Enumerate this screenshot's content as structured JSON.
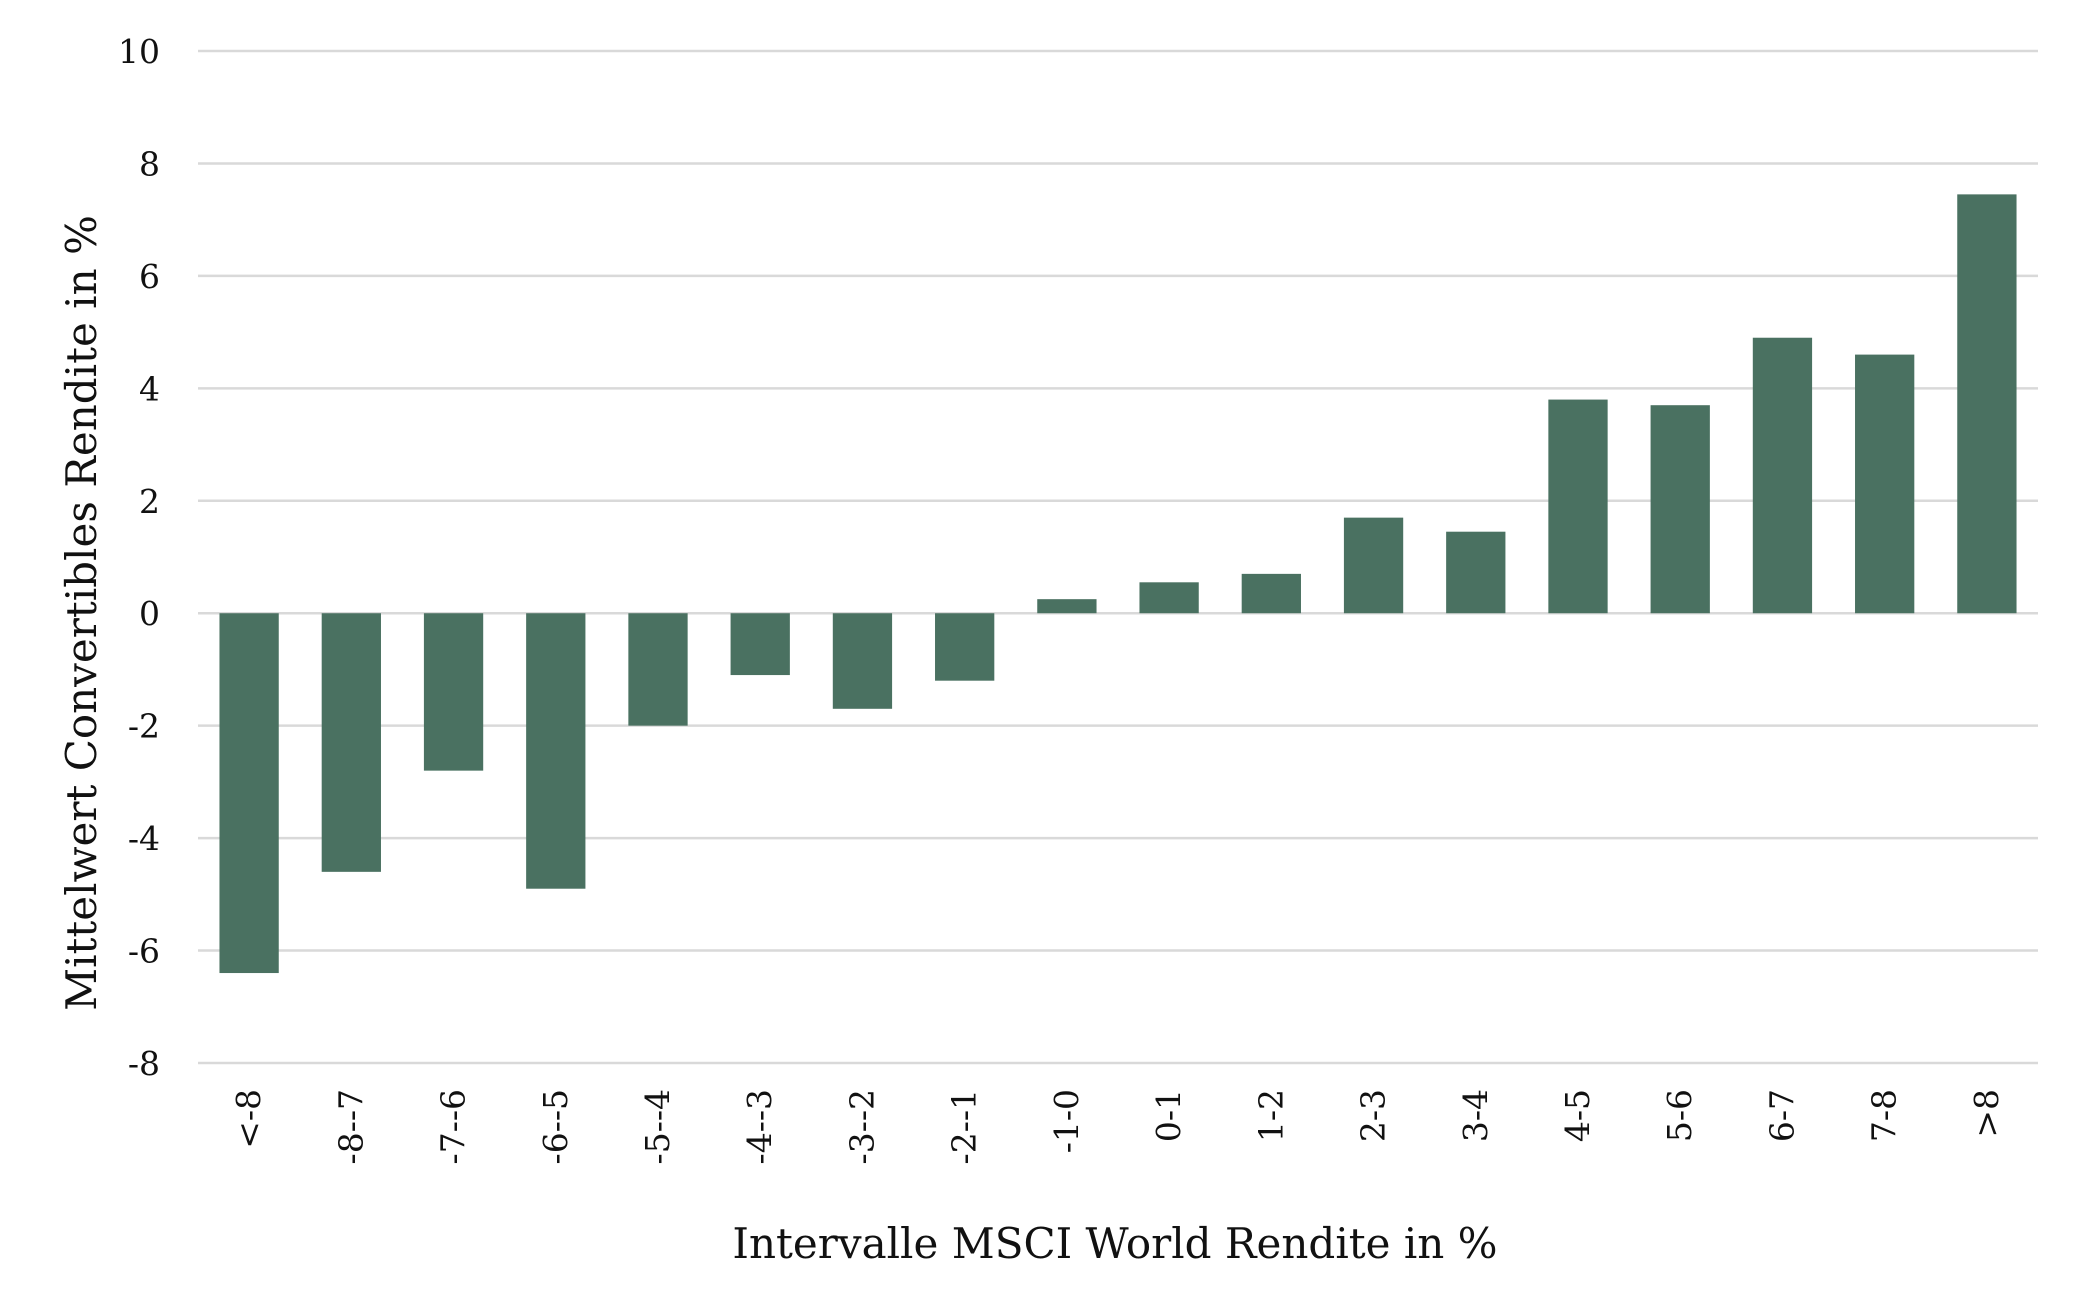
{
  "chart_data": {
    "type": "bar",
    "title": "",
    "xlabel": "Intervalle MSCI World Rendite in %",
    "ylabel": "Mittelwert Convertibles Rendite in %",
    "categories": [
      "<-8",
      "-8--7",
      "-7--6",
      "-6--5",
      "-5--4",
      "-4--3",
      "-3--2",
      "-2--1",
      "-1-0",
      "0-1",
      "1-2",
      "2-3",
      "3-4",
      "4-5",
      "5-6",
      "6-7",
      "7-8",
      ">8"
    ],
    "values": [
      -6.4,
      -4.6,
      -2.8,
      -4.9,
      -2.0,
      -1.1,
      -1.7,
      -1.2,
      0.25,
      0.55,
      0.7,
      1.7,
      1.45,
      3.8,
      3.7,
      4.9,
      4.6,
      7.45
    ],
    "ylim": [
      -8,
      10
    ],
    "yticks": [
      -8,
      -6,
      -4,
      -2,
      0,
      2,
      4,
      6,
      8,
      10
    ],
    "grid": true,
    "legend": "none",
    "bar_color": "#4a7161",
    "grid_color": "#d9d9d9"
  }
}
